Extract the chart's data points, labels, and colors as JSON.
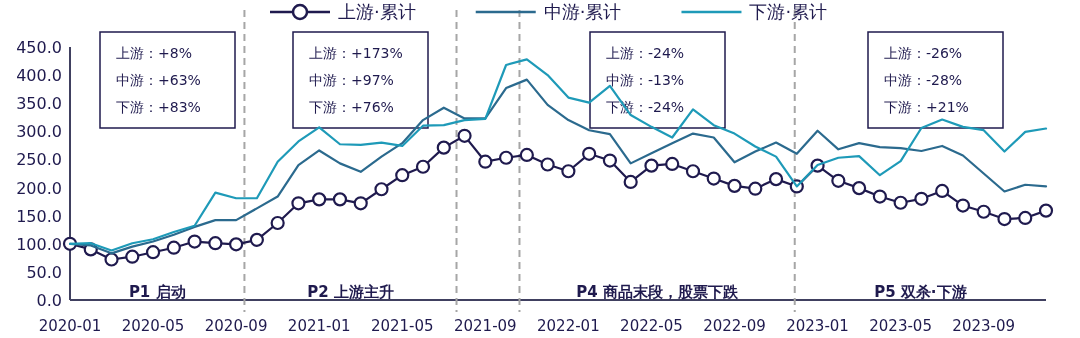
{
  "chart_data": {
    "type": "line",
    "x": [
      "2020-01",
      "2020-02",
      "2020-03",
      "2020-04",
      "2020-05",
      "2020-06",
      "2020-07",
      "2020-08",
      "2020-09",
      "2020-10",
      "2020-11",
      "2020-12",
      "2021-01",
      "2021-02",
      "2021-03",
      "2021-04",
      "2021-05",
      "2021-06",
      "2021-07",
      "2021-08",
      "2021-09",
      "2021-10",
      "2021-11",
      "2021-12",
      "2022-01",
      "2022-02",
      "2022-03",
      "2022-04",
      "2022-05",
      "2022-06",
      "2022-07",
      "2022-08",
      "2022-09",
      "2022-10",
      "2022-11",
      "2022-12",
      "2023-01",
      "2023-02",
      "2023-03",
      "2023-04",
      "2023-05",
      "2023-06",
      "2023-07",
      "2023-08",
      "2023-09",
      "2023-10",
      "2023-11",
      "2023-12"
    ],
    "series": [
      {
        "name": "上游·累计",
        "color": "#1f1a4e",
        "marker": "circle",
        "values": [
          100,
          90,
          72,
          77,
          85,
          93,
          104,
          101,
          99,
          107,
          137,
          172,
          179,
          179,
          172,
          197,
          222,
          237,
          271,
          292,
          246,
          253,
          258,
          241,
          229,
          260,
          248,
          210,
          239,
          242,
          229,
          216,
          203,
          198,
          215,
          202,
          239,
          212,
          199,
          184,
          173,
          180,
          194,
          168,
          157,
          144,
          146,
          159
        ]
      },
      {
        "name": "中游·累计",
        "color": "#2b6a8e",
        "values": [
          100,
          97,
          83,
          95,
          104,
          116,
          130,
          142,
          142,
          163,
          184,
          240,
          266,
          243,
          228,
          255,
          279,
          320,
          342,
          323,
          323,
          377,
          392,
          347,
          320,
          302,
          295,
          243,
          261,
          279,
          296,
          289,
          245,
          264,
          280,
          260,
          301,
          268,
          279,
          272,
          270,
          265,
          274,
          257,
          225,
          193,
          205,
          202
        ]
      },
      {
        "name": "下游·累计",
        "color": "#1e9ab8",
        "values": [
          100,
          101,
          88,
          101,
          108,
          121,
          132,
          191,
          181,
          181,
          246,
          282,
          307,
          277,
          276,
          280,
          274,
          310,
          311,
          320,
          322,
          418,
          428,
          400,
          360,
          351,
          381,
          329,
          308,
          289,
          339,
          311,
          296,
          273,
          255,
          202,
          240,
          253,
          256,
          222,
          247,
          306,
          321,
          308,
          302,
          264,
          299,
          305
        ]
      }
    ],
    "xlim": [
      "2020-01",
      "2023-12"
    ],
    "xticks": [
      "2020-01",
      "2020-05",
      "2020-09",
      "2021-01",
      "2021-05",
      "2021-09",
      "2022-01",
      "2022-05",
      "2022-09",
      "2023-01",
      "2023-05",
      "2023-09"
    ],
    "ylim": [
      0,
      450
    ],
    "yticks": [
      {
        "value": 0,
        "label": "0.0"
      },
      {
        "value": 50,
        "label": "50.0"
      },
      {
        "value": 100,
        "label": "100.0"
      },
      {
        "value": 150,
        "label": "150.0"
      },
      {
        "value": 200,
        "label": "200.0"
      },
      {
        "value": 250,
        "label": "250.0"
      },
      {
        "value": 300,
        "label": "300.0"
      },
      {
        "value": 350,
        "label": "350.0"
      },
      {
        "value": 400,
        "label": "400.0"
      },
      {
        "value": 450,
        "label": "450.0"
      }
    ],
    "ref_lines": [
      {
        "axis": "x",
        "value": "2020-09-13",
        "color": "#a6a6a6",
        "line_style": "dashed"
      },
      {
        "axis": "x",
        "value": "2021-07-20",
        "color": "#a6a6a6",
        "line_style": "dashed"
      },
      {
        "axis": "x",
        "value": "2021-10-21",
        "color": "#a6a6a6",
        "line_style": "dashed"
      },
      {
        "axis": "x",
        "value": "2022-11-28",
        "color": "#a6a6a6",
        "line_style": "dashed"
      }
    ],
    "annotations": [
      "P1 启动",
      "P2 上游主升",
      "P4 商品末段，股票下跌",
      "P5 双杀·下游",
      "上游：+8%",
      "中游：+63%",
      "下游：+83%",
      "上游：+173%",
      "中游：+97%",
      "下游：+76%",
      "上游：-24%",
      "中游：-13%",
      "下游：-24%",
      "上游：-26%",
      "中游：-28%",
      "下游：+21%"
    ],
    "legend": "top",
    "grid": false,
    "line_style": "solid"
  }
}
